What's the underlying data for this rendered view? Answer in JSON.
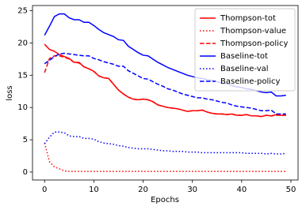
{
  "chart_data": {
    "type": "line",
    "x_label": "Epochs",
    "y_label": "loss",
    "x": [
      0,
      1,
      2,
      3,
      4,
      5,
      6,
      7,
      8,
      9,
      10,
      11,
      12,
      13,
      14,
      15,
      16,
      17,
      18,
      19,
      20,
      21,
      22,
      23,
      24,
      25,
      26,
      27,
      28,
      29,
      30,
      31,
      32,
      33,
      34,
      35,
      36,
      37,
      38,
      39,
      40,
      41,
      42,
      43,
      44,
      45,
      46,
      47,
      48,
      49
    ],
    "xlim": [
      -2.45,
      51.45
    ],
    "xticks": [
      0,
      10,
      20,
      30,
      40,
      50
    ],
    "ylim": [
      -1.23,
      25.8
    ],
    "yticks": [
      0,
      5,
      10,
      15,
      20,
      25
    ],
    "legend": "upper right",
    "series": [
      {
        "name": "Thompson-tot",
        "color": "#ff0000",
        "linestyle": "solid",
        "values": [
          19.8,
          19.0,
          18.7,
          18.2,
          17.9,
          17.6,
          17.0,
          17.0,
          16.3,
          16.0,
          15.6,
          14.9,
          14.6,
          14.5,
          13.6,
          12.7,
          12.1,
          11.6,
          11.3,
          11.2,
          11.3,
          11.2,
          10.9,
          10.4,
          10.2,
          10.0,
          9.9,
          9.8,
          9.6,
          9.4,
          9.5,
          9.5,
          9.6,
          9.3,
          9.1,
          9.0,
          9.0,
          8.9,
          9.0,
          8.8,
          8.8,
          8.9,
          8.7,
          8.7,
          8.6,
          8.8,
          8.7,
          8.9,
          8.8,
          8.8
        ]
      },
      {
        "name": "Thompson-value",
        "color": "#ff0000",
        "linestyle": "dotted",
        "values": [
          4.5,
          1.6,
          0.8,
          0.5,
          0.2,
          0.1,
          0.1,
          0.1,
          0.1,
          0.1,
          0.1,
          0.1,
          0.1,
          0.1,
          0.1,
          0.1,
          0.1,
          0.1,
          0.1,
          0.1,
          0.1,
          0.1,
          0.1,
          0.1,
          0.1,
          0.1,
          0.1,
          0.1,
          0.1,
          0.1,
          0.1,
          0.1,
          0.1,
          0.1,
          0.1,
          0.1,
          0.1,
          0.1,
          0.1,
          0.1,
          0.1,
          0.1,
          0.1,
          0.1,
          0.1,
          0.1,
          0.1,
          0.1,
          0.1,
          0.1
        ]
      },
      {
        "name": "Thompson-policy",
        "color": "#ff0000",
        "linestyle": "dashed",
        "values": [
          15.4,
          17.6,
          18.0,
          18.0,
          17.8,
          17.5,
          17.0,
          16.9,
          16.3,
          16.0,
          15.6,
          14.9,
          14.6,
          14.5,
          13.6,
          12.7,
          12.1,
          11.6,
          11.3,
          11.2,
          11.3,
          11.2,
          10.9,
          10.4,
          10.2,
          10.0,
          9.9,
          9.8,
          9.6,
          9.4,
          9.5,
          9.5,
          9.6,
          9.3,
          9.1,
          9.0,
          9.0,
          8.9,
          9.0,
          8.8,
          8.8,
          8.9,
          8.7,
          8.7,
          8.6,
          8.8,
          8.7,
          8.8,
          8.8,
          8.8
        ]
      },
      {
        "name": "Baseline-tot",
        "color": "#0000ff",
        "linestyle": "solid",
        "values": [
          21.2,
          22.6,
          24.1,
          24.5,
          24.5,
          23.9,
          23.6,
          23.6,
          23.2,
          23.2,
          22.7,
          22.1,
          21.6,
          21.3,
          21.0,
          20.5,
          20.4,
          19.5,
          19.0,
          18.5,
          18.1,
          18.0,
          17.5,
          17.0,
          16.6,
          16.2,
          15.9,
          15.6,
          15.3,
          15.0,
          14.8,
          14.6,
          14.5,
          14.3,
          14.2,
          14.0,
          13.8,
          13.7,
          13.4,
          13.2,
          13.1,
          12.9,
          12.8,
          12.6,
          12.4,
          12.3,
          12.4,
          11.8,
          11.8,
          11.9
        ]
      },
      {
        "name": "Baseline-val",
        "color": "#0000ff",
        "linestyle": "dotted",
        "values": [
          4.4,
          5.4,
          6.2,
          6.2,
          6.1,
          5.6,
          5.5,
          5.5,
          5.2,
          5.2,
          5.1,
          4.7,
          4.5,
          4.4,
          4.3,
          4.1,
          4.0,
          3.8,
          3.7,
          3.6,
          3.6,
          3.6,
          3.5,
          3.4,
          3.3,
          3.3,
          3.2,
          3.2,
          3.2,
          3.1,
          3.1,
          3.1,
          3.0,
          3.0,
          3.0,
          3.0,
          3.0,
          3.0,
          3.0,
          3.0,
          3.0,
          2.9,
          2.9,
          2.9,
          2.9,
          2.8,
          2.9,
          2.8,
          2.8,
          2.9
        ]
      },
      {
        "name": "Baseline-policy",
        "color": "#0000ff",
        "linestyle": "dashed",
        "values": [
          16.8,
          17.3,
          17.9,
          18.3,
          18.4,
          18.3,
          18.2,
          18.1,
          18.0,
          18.0,
          17.6,
          17.4,
          17.1,
          16.9,
          16.7,
          16.4,
          16.4,
          15.7,
          15.3,
          14.9,
          14.5,
          14.4,
          14.0,
          13.6,
          13.3,
          12.9,
          12.7,
          12.4,
          12.1,
          11.9,
          11.7,
          11.5,
          11.5,
          11.3,
          11.2,
          11.0,
          10.8,
          10.7,
          10.4,
          10.2,
          10.1,
          10.0,
          9.9,
          9.7,
          9.5,
          9.5,
          9.6,
          9.0,
          9.0,
          9.0
        ]
      }
    ]
  }
}
